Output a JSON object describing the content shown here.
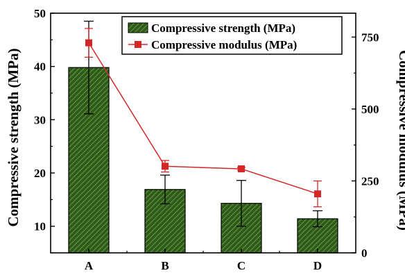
{
  "chart_data": {
    "type": "bar",
    "categories": [
      "A",
      "B",
      "C",
      "D"
    ],
    "series": [
      {
        "name": "Compressive strength (MPa)",
        "kind": "bar",
        "axis": "left",
        "values": [
          39.8,
          16.9,
          14.3,
          11.4
        ],
        "errors": [
          8.7,
          2.7,
          4.3,
          1.5
        ],
        "color": "#2e5a1c"
      },
      {
        "name": "Compressive modulus (MPa)",
        "kind": "line",
        "axis": "right",
        "values": [
          730,
          301,
          292,
          205
        ],
        "errors": [
          50,
          20,
          5,
          45
        ],
        "color": "#d62728"
      }
    ],
    "ylabel": "Compressive strength (MPa)",
    "y2label": "Compressive modulus (MPa)",
    "ylim": [
      5,
      50
    ],
    "y2lim": [
      0,
      833
    ],
    "yticks": [
      10,
      20,
      30,
      40,
      50
    ],
    "y2ticks": [
      0,
      250,
      500,
      750
    ],
    "legend_position": "top-right",
    "grid": false
  }
}
